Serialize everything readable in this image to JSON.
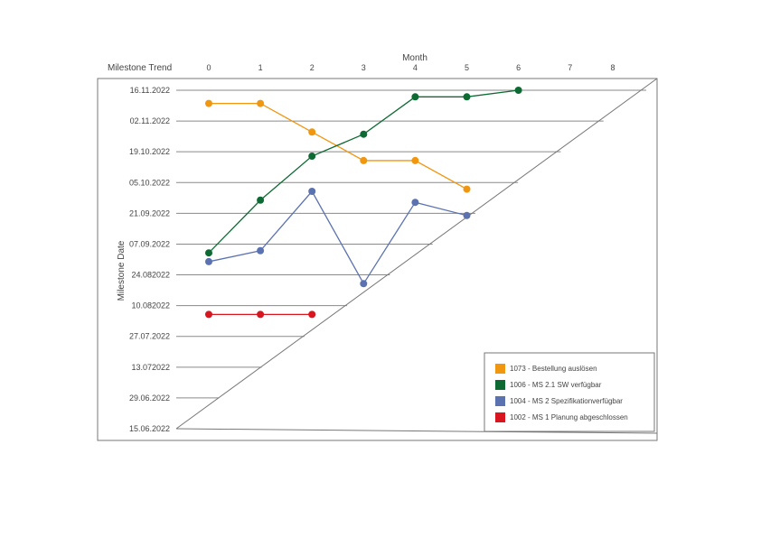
{
  "chart_data": {
    "type": "line",
    "title": "Milestone Trend",
    "xlabel": "Month",
    "ylabel": "Milestone Date",
    "x_ticks": [
      0,
      1,
      2,
      3,
      4,
      5,
      6,
      7,
      8
    ],
    "y_tick_labels": [
      "16.11.2022",
      "02.11.2022",
      "19.10.2022",
      "05.10.2022",
      "21.09.2022",
      "07.09.2022",
      "24.082022",
      "10.082022",
      "27.07.2022",
      "13.072022",
      "29.06.2022",
      "15.06.2022"
    ],
    "y_tick_dates": [
      "2022-11-16",
      "2022-11-02",
      "2022-10-19",
      "2022-10-05",
      "2022-09-21",
      "2022-09-07",
      "2022-08-24",
      "2022-08-10",
      "2022-07-27",
      "2022-07-13",
      "2022-06-29",
      "2022-06-15"
    ],
    "xlim": [
      0,
      8
    ],
    "ylim": [
      "2022-06-15",
      "2022-11-16"
    ],
    "grid": true,
    "legend_position": "bottom-right",
    "series": [
      {
        "name": "1073 - Bestellung auslösen",
        "color": "#f0960f",
        "x": [
          0,
          1,
          2,
          3,
          4,
          5
        ],
        "y": [
          "2022-11-10",
          "2022-11-10",
          "2022-10-28",
          "2022-10-15",
          "2022-10-15",
          "2022-10-02"
        ]
      },
      {
        "name": "1006 - MS 2.1 SW verfügbar",
        "color": "#0e6a33",
        "x": [
          0,
          1,
          2,
          3,
          4,
          5,
          6
        ],
        "y": [
          "2022-09-03",
          "2022-09-27",
          "2022-10-17",
          "2022-10-27",
          "2022-11-13",
          "2022-11-13",
          "2022-11-16"
        ]
      },
      {
        "name": "1004 - MS 2 Spezifikationverfügbar",
        "color": "#5b72b0",
        "x": [
          0,
          1,
          2,
          3,
          4,
          5
        ],
        "y": [
          "2022-08-30",
          "2022-09-04",
          "2022-10-01",
          "2022-08-20",
          "2022-09-26",
          "2022-09-20"
        ]
      },
      {
        "name": "1002 - MS 1 Planung abgeschlossen",
        "color": "#d91520",
        "x": [
          0,
          1,
          2
        ],
        "y": [
          "2022-08-06",
          "2022-08-06",
          "2022-08-06"
        ]
      }
    ]
  }
}
